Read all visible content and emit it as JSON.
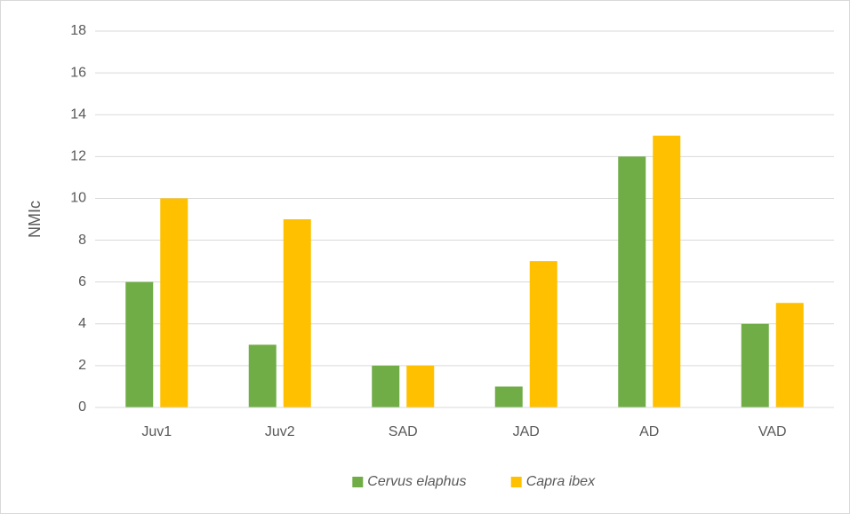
{
  "chart_data": {
    "type": "bar",
    "ylabel": "NMIc",
    "categories": [
      "Juv1",
      "Juv2",
      "SAD",
      "JAD",
      "AD",
      "VAD"
    ],
    "series": [
      {
        "name": "Cervus elaphus",
        "color": "#70ad47",
        "values": [
          6,
          3,
          2,
          1,
          12,
          4
        ]
      },
      {
        "name": "Capra ibex",
        "color": "#ffc000",
        "values": [
          10,
          9,
          2,
          7,
          13,
          5
        ]
      }
    ],
    "ylim": [
      0,
      18
    ],
    "yticks": [
      0,
      2,
      4,
      6,
      8,
      10,
      12,
      14,
      16,
      18
    ],
    "grid": true,
    "legend": "bottom"
  }
}
